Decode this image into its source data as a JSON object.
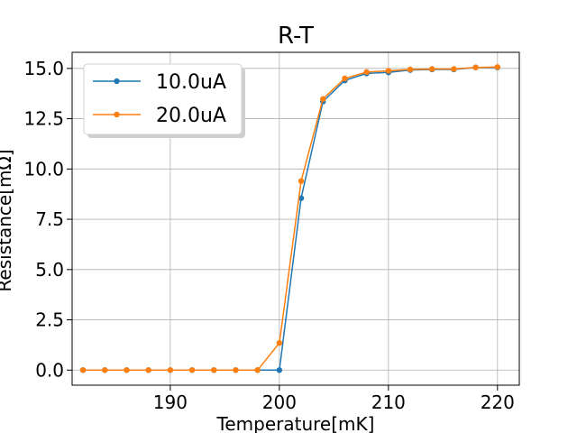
{
  "chart_data": {
    "type": "line",
    "title": "R-T",
    "xlabel": "Temperature[mK]",
    "ylabel": "Resistance[mΩ]",
    "xlim": [
      181,
      222
    ],
    "ylim": [
      -0.75,
      15.8
    ],
    "xticks": [
      190,
      200,
      210,
      220
    ],
    "yticks": [
      0.0,
      2.5,
      5.0,
      7.5,
      10.0,
      12.5,
      15.0
    ],
    "xtick_labels": [
      "190",
      "200",
      "210",
      "220"
    ],
    "ytick_labels": [
      "0.0",
      "2.5",
      "5.0",
      "7.5",
      "10.0",
      "12.5",
      "15.0"
    ],
    "grid": true,
    "legend": "upper-left",
    "series": [
      {
        "name": "10.0uA",
        "color": "#1f77b4",
        "x": [
          182,
          184,
          186,
          188,
          190,
          192,
          194,
          196,
          198,
          200,
          202,
          204,
          206,
          208,
          210,
          212,
          214,
          216,
          218,
          220
        ],
        "y": [
          0.0,
          0.0,
          0.0,
          0.0,
          0.0,
          0.0,
          0.0,
          0.0,
          0.0,
          0.0,
          8.55,
          13.35,
          14.4,
          14.75,
          14.8,
          14.92,
          14.95,
          14.95,
          15.05,
          15.05
        ]
      },
      {
        "name": "20.0uA",
        "color": "#ff7f0e",
        "x": [
          182,
          184,
          186,
          188,
          190,
          192,
          194,
          196,
          198,
          200,
          202,
          204,
          206,
          208,
          210,
          212,
          214,
          216,
          218,
          220
        ],
        "y": [
          0.0,
          0.0,
          0.0,
          0.0,
          0.0,
          0.0,
          0.0,
          0.0,
          0.0,
          1.35,
          9.4,
          13.48,
          14.5,
          14.82,
          14.88,
          14.95,
          14.97,
          14.97,
          15.05,
          15.07
        ]
      }
    ]
  }
}
